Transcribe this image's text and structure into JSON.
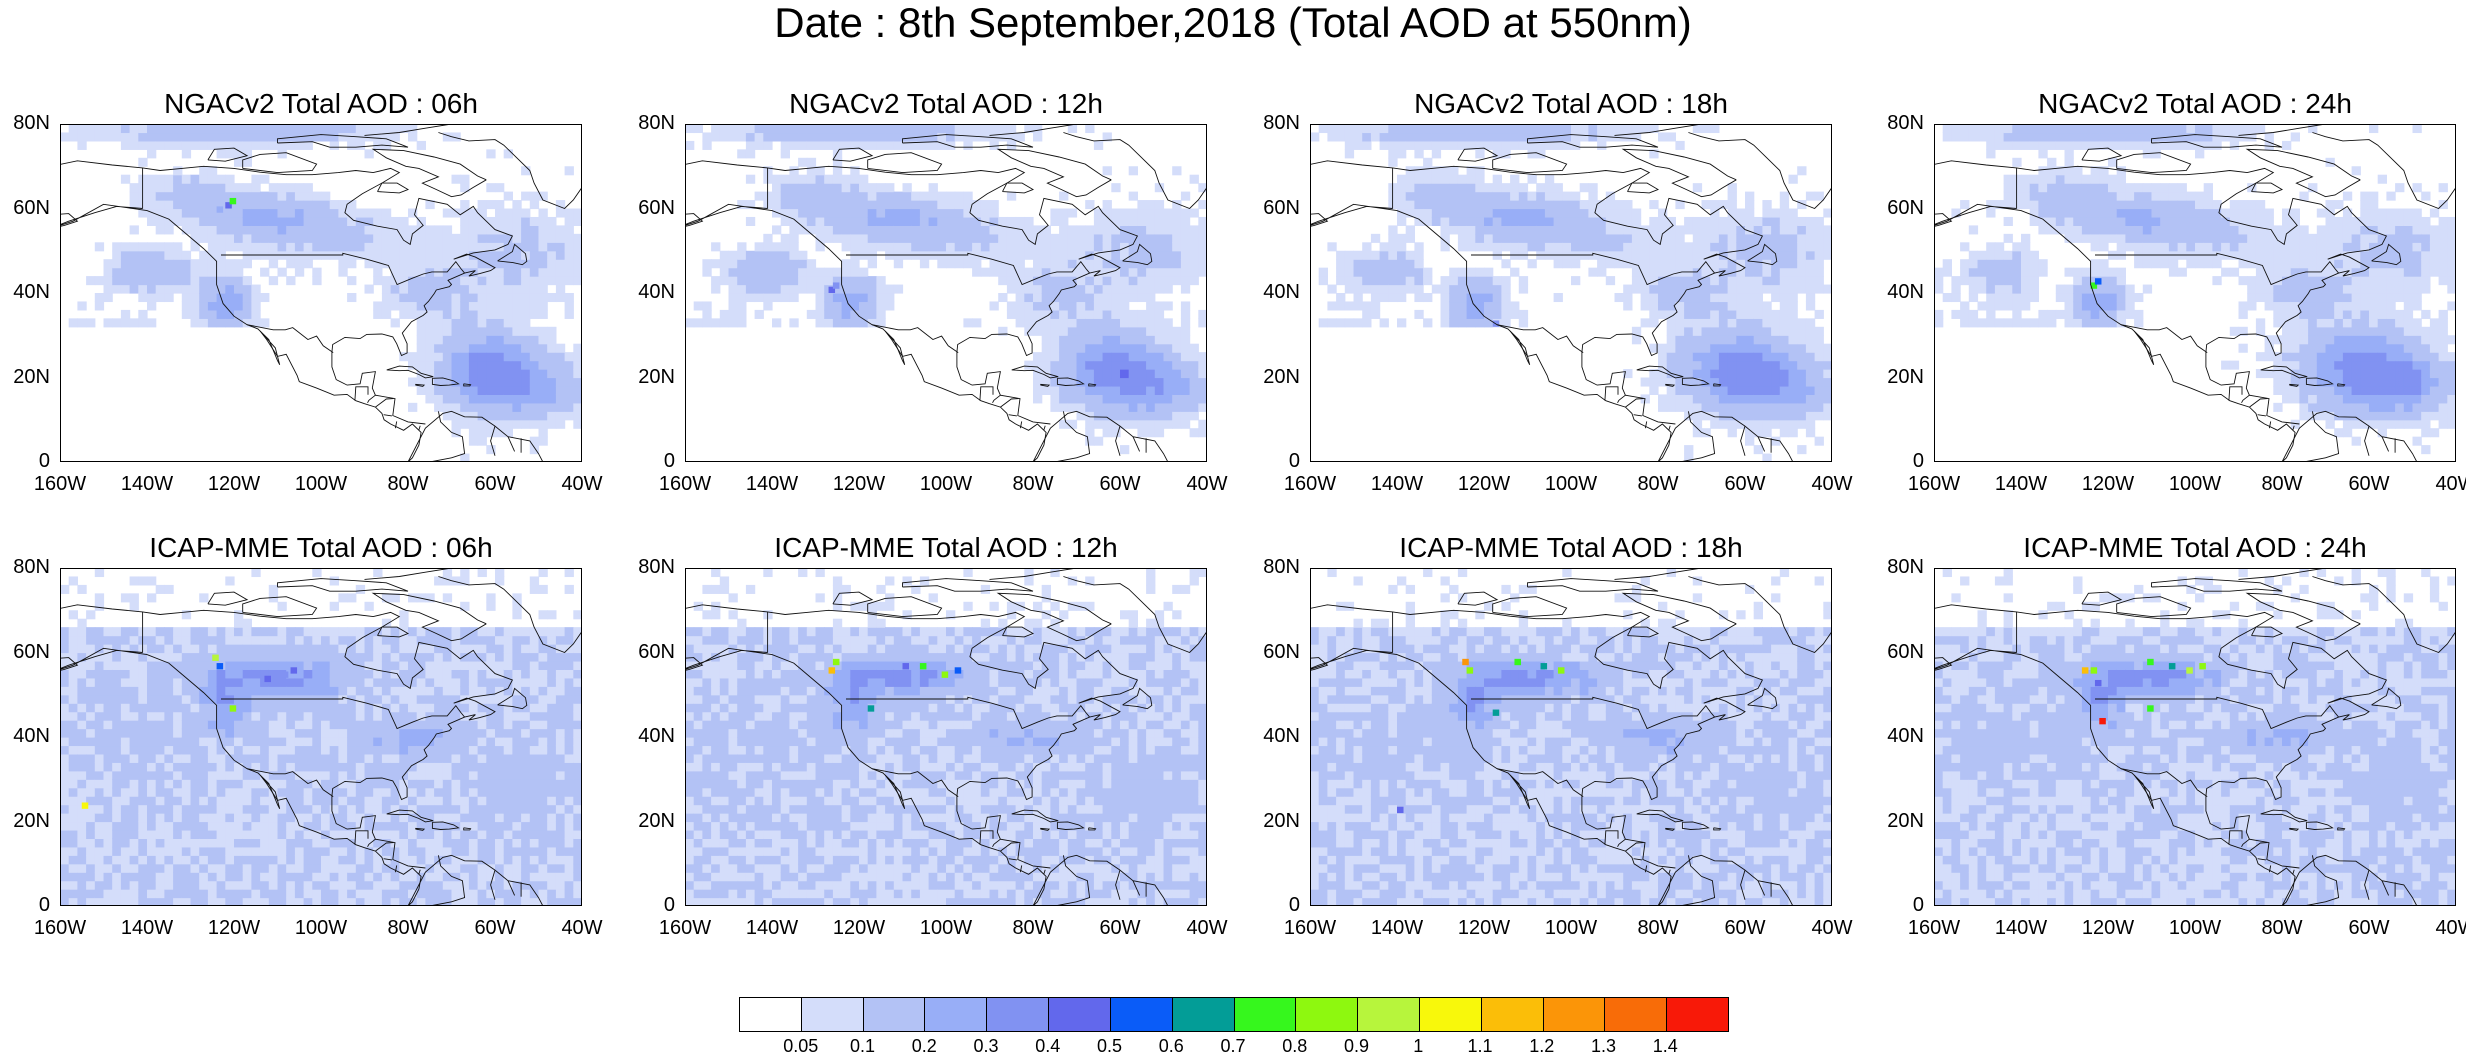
{
  "title": "Date : 8th September,2018 (Total AOD at 550nm)",
  "panels": [
    {
      "title": "NGACv2 Total AOD : 06h",
      "model": "NGACv2",
      "hour": "06h"
    },
    {
      "title": "NGACv2 Total AOD : 12h",
      "model": "NGACv2",
      "hour": "12h"
    },
    {
      "title": "NGACv2 Total AOD : 18h",
      "model": "NGACv2",
      "hour": "18h"
    },
    {
      "title": "NGACv2 Total AOD : 24h",
      "model": "NGACv2",
      "hour": "24h"
    },
    {
      "title": "ICAP-MME Total AOD : 06h",
      "model": "ICAP-MME",
      "hour": "06h"
    },
    {
      "title": "ICAP-MME Total AOD : 12h",
      "model": "ICAP-MME",
      "hour": "12h"
    },
    {
      "title": "ICAP-MME Total AOD : 18h",
      "model": "ICAP-MME",
      "hour": "18h"
    },
    {
      "title": "ICAP-MME Total AOD : 24h",
      "model": "ICAP-MME",
      "hour": "24h"
    }
  ],
  "axes": {
    "y_ticks": [
      "80N",
      "60N",
      "40N",
      "20N",
      "0"
    ],
    "x_ticks": [
      "160W",
      "140W",
      "120W",
      "100W",
      "80W",
      "60W",
      "40W"
    ],
    "lat_range": [
      0,
      80
    ],
    "lon_range": [
      -160,
      -40
    ]
  },
  "colorbar": {
    "labels": [
      "0.05",
      "0.1",
      "0.2",
      "0.3",
      "0.4",
      "0.5",
      "0.6",
      "0.7",
      "0.8",
      "0.9",
      "1",
      "1.1",
      "1.2",
      "1.3",
      "1.4"
    ],
    "colors": [
      "#ffffff",
      "#d4ddfa",
      "#b3c2f5",
      "#98aef7",
      "#8192f2",
      "#6268ec",
      "#0a5cf8",
      "#039d97",
      "#36f71d",
      "#8ef80f",
      "#b7f53c",
      "#f8f80b",
      "#fbbe08",
      "#fb9508",
      "#f86c08",
      "#f81908"
    ]
  }
}
